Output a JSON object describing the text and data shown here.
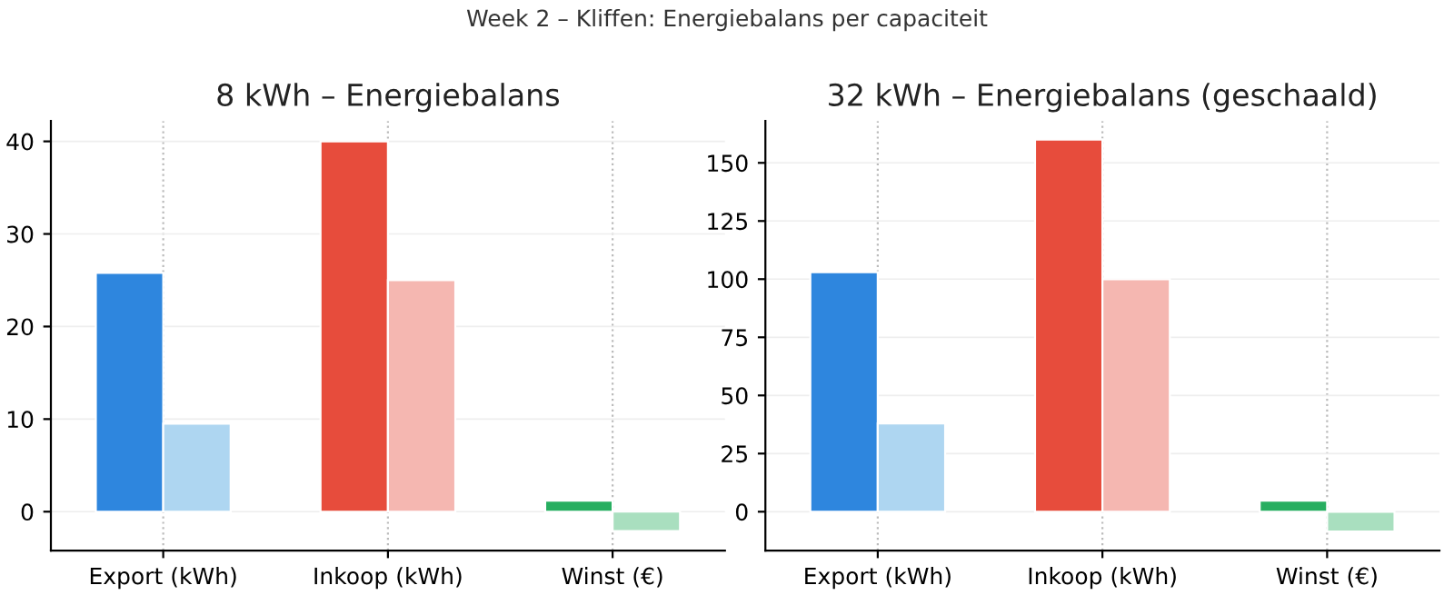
{
  "chart_data": [
    {
      "type": "bar",
      "title": "8 kWh – Energiebalans",
      "annotations": [
        "Week 2 – Kliffen: Energiebalans per capaciteit"
      ],
      "categories": [
        "Export (kWh)",
        "Inkoop (kWh)",
        "Winst (€)"
      ],
      "series": [
        {
          "colors": [
            "#2e86de",
            "#e74c3c",
            "#27ae60"
          ],
          "values": [
            25.8,
            40,
            1.2
          ]
        },
        {
          "colors": [
            "#aed6f1",
            "#f5b7b1",
            "#a9dfbf"
          ],
          "values": [
            9.5,
            25,
            -2.1
          ]
        }
      ],
      "ylim": [
        -4.2,
        42.2
      ],
      "yticks": [
        0,
        10,
        20,
        30,
        40
      ],
      "grid": true
    },
    {
      "type": "bar",
      "title": "32 kWh – Energiebalans (geschaald)",
      "categories": [
        "Export (kWh)",
        "Inkoop (kWh)",
        "Winst (€)"
      ],
      "series": [
        {
          "colors": [
            "#2e86de",
            "#e74c3c",
            "#27ae60"
          ],
          "values": [
            103,
            160,
            4.8
          ]
        },
        {
          "colors": [
            "#aed6f1",
            "#f5b7b1",
            "#a9dfbf"
          ],
          "values": [
            38,
            100,
            -8.5
          ]
        }
      ],
      "ylim": [
        -16.7,
        168
      ],
      "yticks": [
        0,
        25,
        50,
        75,
        100,
        125,
        150
      ],
      "grid": true
    }
  ]
}
